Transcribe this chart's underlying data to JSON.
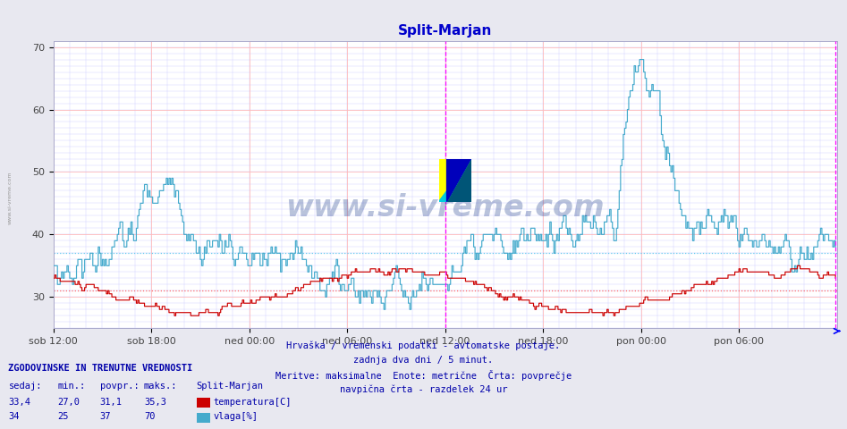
{
  "title": "Split-Marjan",
  "title_color": "#0000cc",
  "bg_color": "#e8e8f0",
  "plot_bg_color": "#ffffff",
  "xlim": [
    0,
    576
  ],
  "ylim": [
    25,
    71
  ],
  "yticks": [
    30,
    40,
    50,
    60,
    70
  ],
  "xtick_labels": [
    "sob 12:00",
    "sob 18:00",
    "ned 00:00",
    "ned 06:00",
    "ned 12:00",
    "ned 18:00",
    "pon 00:00",
    "pon 06:00"
  ],
  "xtick_positions": [
    0,
    72,
    144,
    216,
    288,
    360,
    432,
    504
  ],
  "vertical_line1_x": 288,
  "vertical_line2_x": 575,
  "temp_avg": 31.1,
  "humidity_avg": 37,
  "temp_color": "#cc0000",
  "humidity_color": "#44aacc",
  "avg_line_temp_color": "#ff6666",
  "avg_line_humidity_color": "#66ccee",
  "watermark_text": "www.si-vreme.com",
  "watermark_color": "#1a3a8a",
  "watermark_alpha": 0.3,
  "footer_lines": [
    "Hrvaška / vremenski podatki - avtomatske postaje.",
    "zadnja dva dni / 5 minut.",
    "Meritve: maksimalne  Enote: metrične  Črta: povprečje",
    "navpična črta - razdelek 24 ur"
  ],
  "footer_color": "#0000aa",
  "legend_title": "ZGODOVINSKE IN TRENUTNE VREDNOSTI",
  "legend_header": [
    "sedaj:",
    "min.:",
    "povpr.:",
    "maks.:",
    "Split-Marjan"
  ],
  "legend_temp": [
    "33,4",
    "27,0",
    "31,1",
    "35,3",
    "temperatura[C]"
  ],
  "legend_humidity": [
    "34",
    "25",
    "37",
    "70",
    "vlaga[%]"
  ],
  "legend_color": "#0000aa"
}
